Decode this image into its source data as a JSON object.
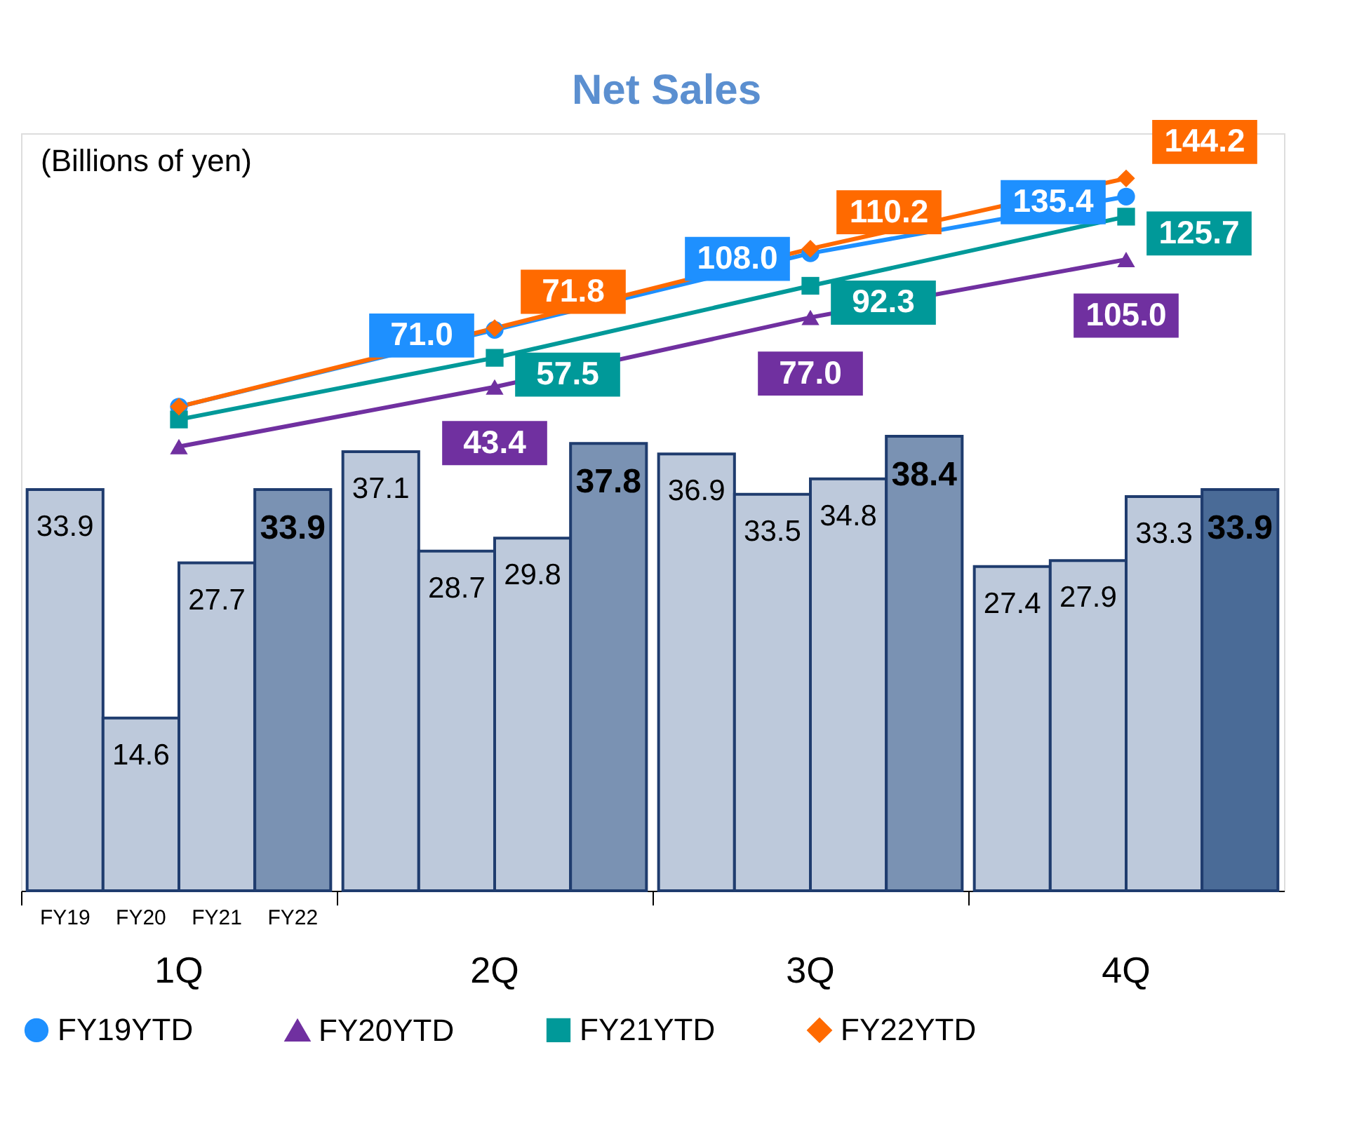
{
  "chart_data": {
    "type": "bar",
    "title": "Net Sales",
    "annotations": [
      "(Billions of yen)"
    ],
    "categories": [
      "1Q",
      "2Q",
      "3Q",
      "4Q"
    ],
    "ylim": [
      0,
      64
    ],
    "y2lim": [
      -200,
      166
    ],
    "legend": "bottom",
    "grid": false,
    "series": [
      {
        "name": "FY19",
        "color": "#bdc9db",
        "values": [
          33.9,
          37.1,
          36.9,
          27.4
        ],
        "value_labels": [
          "33.9",
          "37.1",
          "36.9",
          "27.4"
        ]
      },
      {
        "name": "FY20",
        "color": "#bdc9db",
        "values": [
          14.6,
          28.7,
          33.5,
          27.9
        ],
        "value_labels": [
          "14.6",
          "28.7",
          "33.5",
          "27.9"
        ]
      },
      {
        "name": "FY21",
        "color": "#bdc9db",
        "values": [
          27.7,
          29.8,
          34.8,
          33.3
        ],
        "value_labels": [
          "27.7",
          "29.8",
          "34.8",
          "33.3"
        ]
      },
      {
        "name": "FY22",
        "colors": [
          "#7a92b3",
          "#7a92b3",
          "#7a92b3",
          "#4a6b97"
        ],
        "values": [
          33.9,
          37.8,
          38.4,
          33.9
        ],
        "value_labels": [
          "33.9",
          "37.8",
          "38.4",
          "33.9"
        ]
      },
      {
        "name": "FY19YTD",
        "type": "line",
        "axis": "y2",
        "marker": "circle",
        "color": "#1e90ff",
        "values": [
          33.9,
          71.0,
          108.0,
          135.4
        ],
        "value_labels": [
          null,
          "71.0",
          "108.0",
          "135.4"
        ]
      },
      {
        "name": "FY20YTD",
        "type": "line",
        "axis": "y2",
        "marker": "triangle",
        "color": "#7030a0",
        "values": [
          14.6,
          43.4,
          77.0,
          105.0
        ],
        "value_labels": [
          null,
          "43.4",
          "77.0",
          "105.0"
        ]
      },
      {
        "name": "FY21YTD",
        "type": "line",
        "axis": "y2",
        "marker": "square",
        "color": "#009999",
        "values": [
          27.7,
          57.5,
          92.3,
          125.7
        ],
        "value_labels": [
          null,
          "57.5",
          "92.3",
          "125.7"
        ]
      },
      {
        "name": "FY22YTD",
        "type": "line",
        "axis": "y2",
        "marker": "diamond",
        "color": "#ff6a00",
        "values": [
          33.9,
          71.8,
          110.2,
          144.2
        ],
        "value_labels": [
          null,
          "71.8",
          "110.2",
          "144.2"
        ]
      }
    ]
  }
}
